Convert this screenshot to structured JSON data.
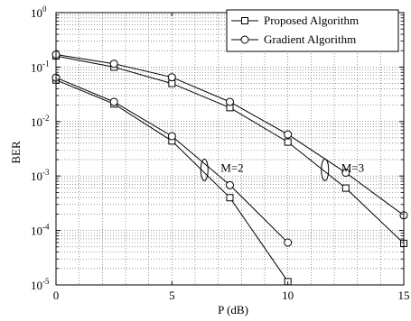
{
  "chart_data": {
    "type": "line",
    "title": "",
    "xlabel": "P (dB)",
    "ylabel": "BER",
    "x_ticks": [
      "0",
      "5",
      "10",
      "15"
    ],
    "y_ticks": [
      {
        "base": "10",
        "exp": "0"
      },
      {
        "base": "10",
        "exp": "-1"
      },
      {
        "base": "10",
        "exp": "-2"
      },
      {
        "base": "10",
        "exp": "-3"
      },
      {
        "base": "10",
        "exp": "-4"
      },
      {
        "base": "10",
        "exp": "-5"
      }
    ],
    "xlim": [
      0,
      15
    ],
    "ylim": [
      1e-05,
      1
    ],
    "yscale": "log",
    "grid": true,
    "legend_position": "top-right",
    "legend": [
      {
        "label": "Proposed Algorithm",
        "marker": "square"
      },
      {
        "label": "Gradient Algorithm",
        "marker": "circle"
      }
    ],
    "series": [
      {
        "name": "Proposed Algorithm",
        "marker": "square",
        "group": "M=2",
        "x": [
          0,
          2.5,
          5,
          7.5,
          10
        ],
        "y": [
          0.058,
          0.021,
          0.0044,
          0.0004,
          1.15e-05
        ]
      },
      {
        "name": "Gradient Algorithm",
        "marker": "circle",
        "group": "M=2",
        "x": [
          0,
          2.5,
          5,
          7.5,
          10
        ],
        "y": [
          0.064,
          0.023,
          0.0054,
          0.00068,
          6e-05
        ]
      },
      {
        "name": "Proposed Algorithm",
        "marker": "square",
        "group": "M=3",
        "x": [
          0,
          2.5,
          5,
          7.5,
          10,
          12.5,
          15
        ],
        "y": [
          0.16,
          0.1,
          0.05,
          0.018,
          0.0042,
          0.0006,
          5.8e-05
        ]
      },
      {
        "name": "Gradient Algorithm",
        "marker": "circle",
        "group": "M=3",
        "x": [
          0,
          2.5,
          5,
          7.5,
          10,
          12.5,
          15
        ],
        "y": [
          0.17,
          0.115,
          0.065,
          0.023,
          0.0058,
          0.00115,
          0.00019
        ]
      }
    ],
    "annotations": [
      {
        "text": "M=2",
        "ellipse_at": [
          6.4,
          0.0013
        ]
      },
      {
        "text": "M=3",
        "ellipse_at": [
          11.6,
          0.0013
        ]
      }
    ]
  }
}
